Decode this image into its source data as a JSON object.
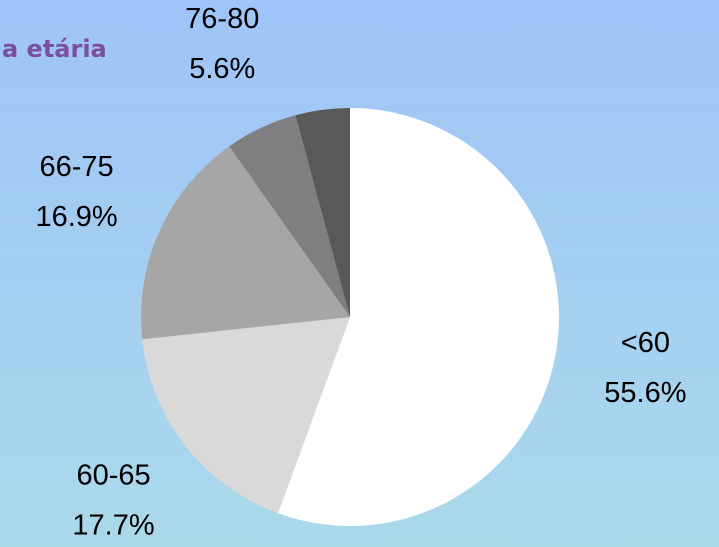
{
  "chart_data": {
    "type": "pie",
    "title": "a etária",
    "categories": [
      "<60",
      "60-65",
      "66-75",
      "76-80",
      null
    ],
    "values": [
      55.6,
      17.7,
      16.9,
      5.6,
      4.2
    ],
    "value_labels": [
      "55.6%",
      "17.7%",
      "16.9%",
      "5.6%",
      null
    ],
    "colors": [
      "#ffffff",
      "#d9d9d9",
      "#a6a6a6",
      "#7f7f7f",
      "#595959"
    ]
  }
}
